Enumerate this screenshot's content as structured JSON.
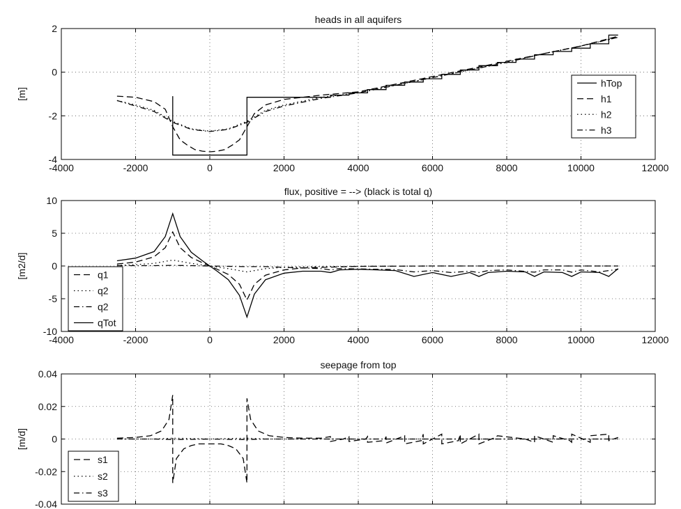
{
  "chart_data": [
    {
      "type": "line",
      "title": "heads in all aquifers",
      "xlabel": "",
      "ylabel": "[m]",
      "xlim": [
        -4000,
        12000
      ],
      "ylim": [
        -4,
        2
      ],
      "xticks": [
        "-4000",
        "-2000",
        "0",
        "2000",
        "4000",
        "6000",
        "8000",
        "10000",
        "12000"
      ],
      "yticks": [
        "-4",
        "-2",
        "0",
        "2"
      ],
      "grid": true,
      "legend_position": "right",
      "series": [
        {
          "name": "hTop",
          "style": "solid",
          "x": [
            -1000,
            -1000,
            1000,
            1000,
            3250,
            3250,
            3750,
            3750,
            4250,
            4250,
            4750,
            4750,
            5250,
            5250,
            5750,
            5750,
            6250,
            6250,
            6750,
            6750,
            7250,
            7250,
            7750,
            7750,
            8250,
            8250,
            8750,
            8750,
            9250,
            9250,
            9750,
            9750,
            10250,
            10250,
            10750,
            10750,
            11000
          ],
          "y": [
            -1.1,
            -3.8,
            -3.8,
            -1.15,
            -1.15,
            -1.05,
            -1.05,
            -0.95,
            -0.95,
            -0.8,
            -0.8,
            -0.6,
            -0.6,
            -0.45,
            -0.45,
            -0.3,
            -0.3,
            -0.1,
            -0.1,
            0.1,
            0.1,
            0.3,
            0.3,
            0.45,
            0.45,
            0.6,
            0.6,
            0.8,
            0.8,
            0.95,
            0.95,
            1.1,
            1.1,
            1.3,
            1.3,
            1.7,
            1.7
          ]
        },
        {
          "name": "h1",
          "style": "dashed",
          "x": [
            -2500,
            -2000,
            -1500,
            -1200,
            -1000,
            -800,
            -600,
            -400,
            -200,
            0,
            200,
            400,
            600,
            800,
            1000,
            1200,
            1500,
            2000,
            3000,
            4000,
            5000,
            6000,
            7000,
            8000,
            9000,
            10000,
            11000
          ],
          "y": [
            -1.1,
            -1.15,
            -1.35,
            -1.7,
            -2.5,
            -3.1,
            -3.35,
            -3.55,
            -3.62,
            -3.65,
            -3.62,
            -3.55,
            -3.35,
            -3.1,
            -2.5,
            -1.9,
            -1.5,
            -1.25,
            -1.05,
            -0.9,
            -0.55,
            -0.2,
            0.15,
            0.5,
            0.85,
            1.2,
            1.65
          ]
        },
        {
          "name": "h2",
          "style": "dotted",
          "x": [
            -2500,
            -2000,
            -1500,
            -1000,
            -500,
            0,
            500,
            1000,
            1500,
            2000,
            3000,
            4000,
            5000,
            6000,
            7000,
            8000,
            9000,
            10000,
            11000
          ],
          "y": [
            -1.3,
            -1.5,
            -1.75,
            -2.25,
            -2.6,
            -2.7,
            -2.6,
            -2.25,
            -1.75,
            -1.5,
            -1.15,
            -0.95,
            -0.6,
            -0.25,
            0.1,
            0.45,
            0.85,
            1.2,
            1.6
          ]
        },
        {
          "name": "h3",
          "style": "dashdot",
          "x": [
            -2500,
            -2000,
            -1500,
            -1000,
            -500,
            0,
            500,
            1000,
            1500,
            2000,
            3000,
            4000,
            5000,
            6000,
            7000,
            8000,
            9000,
            10000,
            11000
          ],
          "y": [
            -1.3,
            -1.55,
            -1.8,
            -2.3,
            -2.62,
            -2.72,
            -2.62,
            -2.3,
            -1.8,
            -1.55,
            -1.2,
            -0.95,
            -0.6,
            -0.25,
            0.1,
            0.45,
            0.85,
            1.2,
            1.6
          ]
        }
      ]
    },
    {
      "type": "line",
      "title": "flux, positive = --> (black is total q)",
      "xlabel": "",
      "ylabel": "[m2/d]",
      "xlim": [
        -4000,
        12000
      ],
      "ylim": [
        -10,
        10
      ],
      "xticks": [
        "-4000",
        "-2000",
        "0",
        "2000",
        "4000",
        "6000",
        "8000",
        "10000",
        "12000"
      ],
      "yticks": [
        "-10",
        "-5",
        "0",
        "5",
        "10"
      ],
      "grid": true,
      "legend_position": "bottom-left",
      "series": [
        {
          "name": "q1",
          "style": "dashed",
          "x": [
            -2500,
            -2000,
            -1500,
            -1200,
            -1000,
            -800,
            -500,
            -200,
            0,
            200,
            500,
            800,
            1000,
            1200,
            1500,
            2000,
            2500,
            4000,
            6000,
            8000,
            10000,
            11000
          ],
          "y": [
            0.3,
            0.6,
            1.4,
            2.8,
            5.2,
            2.8,
            1.3,
            0.5,
            0,
            -0.5,
            -1.3,
            -2.8,
            -5.2,
            -2.8,
            -1.4,
            -0.6,
            -0.3,
            -0.05,
            0,
            0,
            0,
            0
          ]
        },
        {
          "name": "q2",
          "style": "dotted",
          "x": [
            -2500,
            -2000,
            -1500,
            -1000,
            -500,
            0,
            500,
            1000,
            1500,
            2000,
            2500,
            4000,
            6000,
            8000,
            10000,
            11000
          ],
          "y": [
            0.1,
            0.2,
            0.4,
            0.9,
            0.4,
            0,
            -0.4,
            -0.9,
            -0.4,
            -0.2,
            -0.1,
            -0.05,
            0,
            0,
            0,
            0
          ]
        },
        {
          "name": "q2",
          "style": "dashdot",
          "x": [
            -2500,
            -2000,
            -1500,
            -1000,
            -500,
            0,
            500,
            1000,
            1500,
            2000,
            2500,
            3000,
            3250,
            3500,
            4000,
            4500,
            5000,
            5500,
            6000,
            6500,
            7000,
            7250,
            7500,
            8000,
            8750,
            9000,
            9500,
            9750,
            10000,
            10500,
            11000
          ],
          "y": [
            0.05,
            0.05,
            0.05,
            0.1,
            0.05,
            0,
            -0.05,
            -0.1,
            -0.1,
            -0.2,
            -0.3,
            -0.4,
            -0.6,
            -0.4,
            -0.45,
            -0.5,
            -0.55,
            -0.9,
            -0.7,
            -1.0,
            -0.8,
            -1.0,
            -0.7,
            -0.6,
            -0.95,
            -0.6,
            -0.6,
            -0.95,
            -0.6,
            -0.9,
            -0.5
          ]
        },
        {
          "name": "qTot",
          "style": "solid",
          "x": [
            -2500,
            -2000,
            -1500,
            -1200,
            -1000,
            -800,
            -500,
            -200,
            0,
            200,
            500,
            800,
            1000,
            1200,
            1500,
            2000,
            2500,
            3000,
            3250,
            3500,
            4000,
            4500,
            5000,
            5500,
            6000,
            6500,
            7000,
            7250,
            7500,
            8000,
            8500,
            8750,
            9000,
            9500,
            9750,
            10000,
            10500,
            10750,
            11000
          ],
          "y": [
            0.8,
            1.2,
            2.2,
            4.5,
            8.0,
            4.5,
            2.1,
            0.8,
            0,
            -0.8,
            -2.1,
            -4.5,
            -7.8,
            -4.3,
            -2.1,
            -1.1,
            -0.8,
            -0.8,
            -1.0,
            -0.6,
            -0.5,
            -0.6,
            -0.7,
            -1.6,
            -1.0,
            -1.6,
            -1.0,
            -1.6,
            -1.0,
            -0.8,
            -0.9,
            -1.6,
            -0.9,
            -1.0,
            -1.6,
            -0.9,
            -1.0,
            -1.6,
            -0.4
          ]
        }
      ]
    },
    {
      "type": "line",
      "title": "seepage from top",
      "xlabel": "",
      "ylabel": "[m/d]",
      "xlim": [
        -4000,
        12000
      ],
      "ylim": [
        -0.04,
        0.04
      ],
      "xticks": [],
      "yticks": [
        "-0.04",
        "-0.02",
        "0",
        "0.02",
        "0.04"
      ],
      "grid": true,
      "legend_position": "bottom-left",
      "series": [
        {
          "name": "s1",
          "style": "dashed",
          "x": [
            -2500,
            -2000,
            -1600,
            -1300,
            -1100,
            -1000,
            -1000,
            -900,
            -700,
            -500,
            -300,
            0,
            300,
            500,
            700,
            900,
            1000,
            1000,
            1100,
            1300,
            1600,
            2000,
            2500,
            3000,
            3250,
            3250,
            3600,
            3750,
            3750,
            4200,
            4250,
            4250,
            4700,
            4750,
            4750,
            5250,
            5250,
            5700,
            5750,
            5750,
            6250,
            6250,
            6700,
            6750,
            6750,
            7250,
            7250,
            7700,
            7750,
            8500,
            8750,
            8750,
            9250,
            9250,
            9700,
            9750,
            9750,
            10250,
            10250,
            10750,
            10750,
            11000
          ],
          "y": [
            0.0005,
            0.001,
            0.002,
            0.005,
            0.012,
            0.027,
            -0.027,
            -0.012,
            -0.006,
            -0.004,
            -0.003,
            -0.003,
            -0.003,
            -0.004,
            -0.006,
            -0.012,
            -0.027,
            0.025,
            0.012,
            0.005,
            0.002,
            0.001,
            0.0005,
            0.0005,
            0.0015,
            -0.0015,
            0,
            0.0015,
            -0.0015,
            0,
            0.0015,
            -0.002,
            -0.001,
            0.0015,
            -0.0025,
            0.002,
            -0.003,
            -0.001,
            0.003,
            -0.003,
            0.003,
            -0.003,
            -0.001,
            0.003,
            -0.003,
            0.003,
            -0.003,
            0.001,
            0.002,
            0,
            -0.002,
            0.002,
            -0.002,
            0.002,
            -0.001,
            -0.002,
            0.003,
            -0.002,
            0.002,
            0.003,
            -0.001,
            0.001
          ]
        },
        {
          "name": "s2",
          "style": "dotted",
          "x": [
            -2500,
            -1500,
            -1000,
            -500,
            0,
            500,
            1000,
            1500,
            2500,
            4000,
            6000,
            8000,
            10000,
            11000
          ],
          "y": [
            0,
            0,
            0.0005,
            0.0003,
            0,
            0.0003,
            0.0005,
            0,
            0,
            0,
            0,
            0,
            0,
            0
          ]
        },
        {
          "name": "s3",
          "style": "dashdot",
          "x": [
            -2500,
            -1500,
            -1000,
            -500,
            0,
            500,
            1000,
            1500,
            2500,
            4000,
            6000,
            8000,
            10000,
            11000
          ],
          "y": [
            0,
            0,
            -0.0003,
            -0.0002,
            0,
            -0.0002,
            -0.0003,
            0,
            0,
            0,
            0,
            0,
            0,
            0
          ]
        }
      ]
    }
  ]
}
